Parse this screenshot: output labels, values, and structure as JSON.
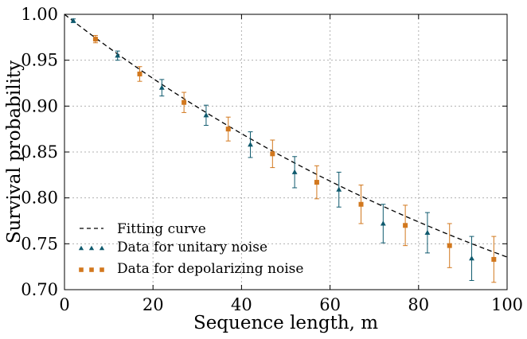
{
  "chart_data": {
    "type": "scatter",
    "title": "",
    "xlabel": "Sequence length,  m",
    "ylabel": "Survival probability",
    "xlim": [
      0,
      100
    ],
    "ylim": [
      0.7,
      1.0
    ],
    "xticks": [
      0,
      20,
      40,
      60,
      80,
      100
    ],
    "xtick_labels": [
      "0",
      "20",
      "40",
      "60",
      "80",
      "100"
    ],
    "yticks": [
      0.7,
      0.75,
      0.8,
      0.85,
      0.9,
      0.95,
      1.0
    ],
    "ytick_labels": [
      "0.70",
      "0.75",
      "0.80",
      "0.85",
      "0.90",
      "0.95",
      "1.00"
    ],
    "grid": true,
    "legend_position": "lower-left",
    "fit": {
      "name": "Fitting curve",
      "style": "dashed",
      "color": "#000000",
      "model": "A*p^m + B",
      "A": 0.5,
      "p": 0.9925,
      "B": 0.5,
      "x_range": [
        0,
        100
      ]
    },
    "series": [
      {
        "name": "Data for unitary noise",
        "marker": "triangle",
        "color": "#0f5a6e",
        "x": [
          2,
          12,
          22,
          32,
          42,
          52,
          62,
          72,
          82,
          92
        ],
        "y": [
          0.993,
          0.955,
          0.92,
          0.89,
          0.858,
          0.828,
          0.809,
          0.772,
          0.762,
          0.734
        ],
        "err": [
          0.002,
          0.005,
          0.009,
          0.011,
          0.014,
          0.017,
          0.019,
          0.021,
          0.022,
          0.024
        ]
      },
      {
        "name": "Data for depolarizing noise",
        "marker": "square",
        "color": "#d2781e",
        "x": [
          7,
          17,
          27,
          37,
          47,
          57,
          67,
          77,
          87,
          97
        ],
        "y": [
          0.973,
          0.935,
          0.904,
          0.875,
          0.848,
          0.817,
          0.793,
          0.77,
          0.748,
          0.733
        ],
        "err": [
          0.004,
          0.008,
          0.011,
          0.013,
          0.015,
          0.018,
          0.021,
          0.022,
          0.024,
          0.025
        ]
      }
    ]
  }
}
